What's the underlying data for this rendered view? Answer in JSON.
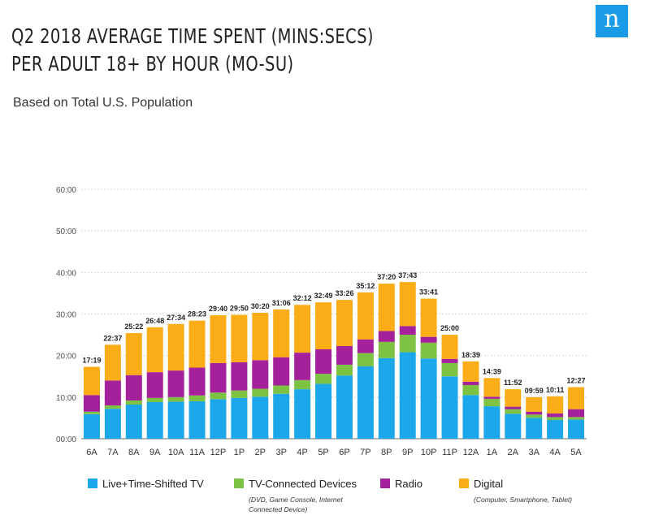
{
  "title_line1": "Q2 2018 AVERAGE TIME SPENT (MINS:SECS)",
  "title_line2": "PER ADULT 18+ BY HOUR (MO-SU)",
  "subtitle": "Based on Total U.S. Population",
  "logo": "n",
  "colors": {
    "tv": "#1ba7e9",
    "devices": "#7dc242",
    "radio": "#a5219b",
    "digital": "#fbad17",
    "grid": "#d8d8d8",
    "axis": "#666666"
  },
  "legend": [
    {
      "key": "tv",
      "label": "Live+Time-Shifted TV",
      "note": ""
    },
    {
      "key": "devices",
      "label": "TV-Connected Devices",
      "note": "(DVD, Game Console, Internet Connected Device)"
    },
    {
      "key": "radio",
      "label": "Radio",
      "note": ""
    },
    {
      "key": "digital",
      "label": "Digital",
      "note": "(Computer, Smartphone, Tablet)"
    }
  ],
  "chart_data": {
    "type": "bar",
    "stacked": true,
    "title": "Q2 2018 AVERAGE TIME SPENT (MINS:SECS) PER ADULT 18+ BY HOUR (MO-SU)",
    "subtitle": "Based on Total U.S. Population",
    "categories": [
      "6A",
      "7A",
      "8A",
      "9A",
      "10A",
      "11A",
      "12P",
      "1P",
      "2P",
      "3P",
      "4P",
      "5P",
      "6P",
      "7P",
      "8P",
      "9P",
      "10P",
      "11P",
      "12A",
      "1A",
      "2A",
      "3A",
      "4A",
      "5A"
    ],
    "totals": [
      "17:19",
      "22:37",
      "25:22",
      "26:48",
      "27:34",
      "28:23",
      "29:40",
      "29:50",
      "30:20",
      "31:06",
      "32:12",
      "32:49",
      "33:26",
      "35:12",
      "37:20",
      "37:43",
      "33:41",
      "25:00",
      "18:39",
      "14:39",
      "11:52",
      "09:59",
      "10:11",
      "12:27"
    ],
    "yticks": [
      "00:00",
      "10:00",
      "20:00",
      "30:00",
      "40:00",
      "50:00",
      "60:00"
    ],
    "ylim": [
      0,
      60
    ],
    "grid": true,
    "series": [
      {
        "name": "Live+Time-Shifted TV",
        "key": "tv",
        "values": [
          5.9,
          7.2,
          8.2,
          8.8,
          8.9,
          9.0,
          9.5,
          9.8,
          10.1,
          10.8,
          11.9,
          13.2,
          15.2,
          17.4,
          19.4,
          20.8,
          19.3,
          15.0,
          10.5,
          7.8,
          6.0,
          5.0,
          4.5,
          4.6
        ]
      },
      {
        "name": "TV-Connected Devices",
        "key": "devices",
        "values": [
          0.6,
          0.8,
          1.0,
          1.0,
          1.1,
          1.4,
          1.6,
          1.8,
          1.9,
          2.0,
          2.2,
          2.4,
          2.6,
          3.2,
          3.9,
          4.2,
          3.8,
          3.2,
          2.4,
          1.8,
          1.1,
          0.8,
          0.7,
          0.6
        ]
      },
      {
        "name": "Radio",
        "key": "radio",
        "values": [
          4.0,
          6.0,
          6.1,
          6.2,
          6.4,
          6.7,
          7.1,
          6.8,
          6.9,
          6.8,
          6.6,
          5.9,
          4.5,
          3.3,
          2.6,
          2.1,
          1.4,
          1.0,
          0.8,
          0.5,
          0.6,
          0.7,
          0.9,
          1.9
        ]
      },
      {
        "name": "Digital",
        "key": "digital",
        "values": [
          6.8,
          8.6,
          10.1,
          10.8,
          11.2,
          11.3,
          11.5,
          11.4,
          11.4,
          11.5,
          11.5,
          11.3,
          11.1,
          11.3,
          11.4,
          10.6,
          9.2,
          5.8,
          4.9,
          4.5,
          4.2,
          3.5,
          4.1,
          5.3
        ]
      }
    ]
  }
}
